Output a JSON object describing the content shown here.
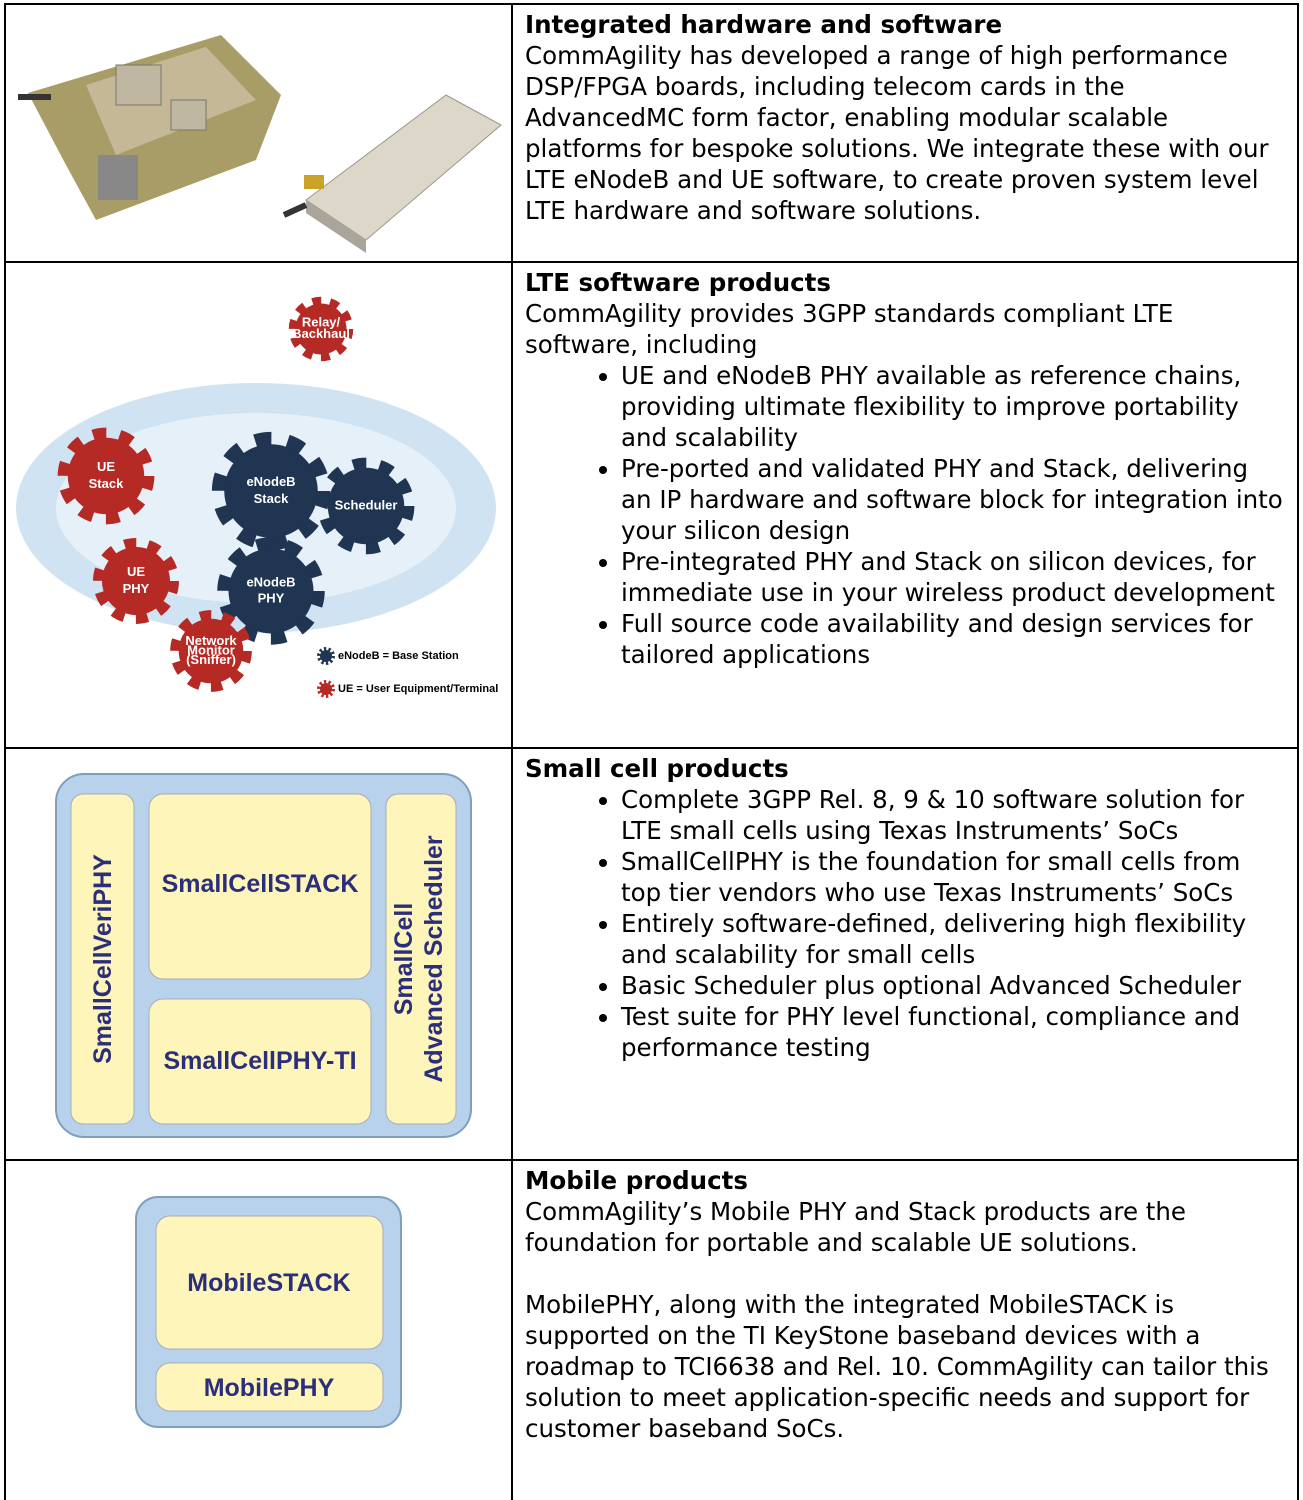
{
  "rows": [
    {
      "title": "Integrated hardware and software",
      "paragraphs": [
        "CommAgility has developed a range of high performance DSP/FPGA boards, including telecom cards in the AdvancedMC form factor, enabling modular scalable platforms for bespoke solutions. We integrate these with our LTE eNodeB and UE software, to create proven system level LTE hardware and software solutions."
      ]
    },
    {
      "title": "LTE software products",
      "paragraphs": [
        "CommAgility provides 3GPP standards compliant LTE software, including"
      ],
      "bullets": [
        "UE and eNodeB PHY available as reference chains, providing ultimate flexibility to improve portability and scalability",
        "Pre-ported and validated PHY and Stack, delivering an IP hardware and software block for integration into your silicon design",
        "Pre-integrated PHY and Stack on silicon devices, for immediate use in your wireless product development",
        "Full source code availability and design services for tailored applications"
      ],
      "image": {
        "gears": [
          [
            "Relay/",
            "Backhaul"
          ],
          [
            "UE",
            "Stack"
          ],
          [
            "eNodeB",
            "Stack"
          ],
          [
            "Scheduler"
          ],
          [
            "UE",
            "PHY"
          ],
          [
            "eNodeB",
            "PHY"
          ],
          [
            "Network",
            "Monitor",
            "(Sniffer)"
          ]
        ],
        "legend": [
          "eNodeB = Base Station",
          "UE = User Equipment/Terminal"
        ]
      }
    },
    {
      "title": "Small cell products",
      "bullets": [
        "Complete 3GPP Rel. 8, 9 & 10 software solution for LTE small cells using Texas Instruments’ SoCs",
        "SmallCellPHY is the foundation for small cells from top tier vendors who use Texas Instruments’ SoCs",
        "Entirely software-defined, delivering high flexibility and scalability for small cells",
        "Basic Scheduler plus optional Advanced Scheduler",
        "Test suite for PHY level functional, compliance and performance testing"
      ],
      "image": {
        "labels": [
          "SmallCellVeriPHY",
          "SmallCellSTACK",
          "SmallCellPHY-TI",
          "SmallCell",
          "Advanced Scheduler"
        ]
      }
    },
    {
      "title": "Mobile products",
      "paragraphs": [
        "CommAgility’s Mobile PHY and Stack products are the foundation for portable and scalable UE solutions.",
        "MobilePHY, along with the integrated MobileSTACK is supported on the TI KeyStone baseband devices with a roadmap to TCI6638 and Rel. 10. CommAgility can tailor this solution to meet application-specific needs and support for customer baseband SoCs."
      ],
      "image": {
        "labels": [
          "MobileSTACK",
          "MobilePHY"
        ]
      }
    }
  ]
}
